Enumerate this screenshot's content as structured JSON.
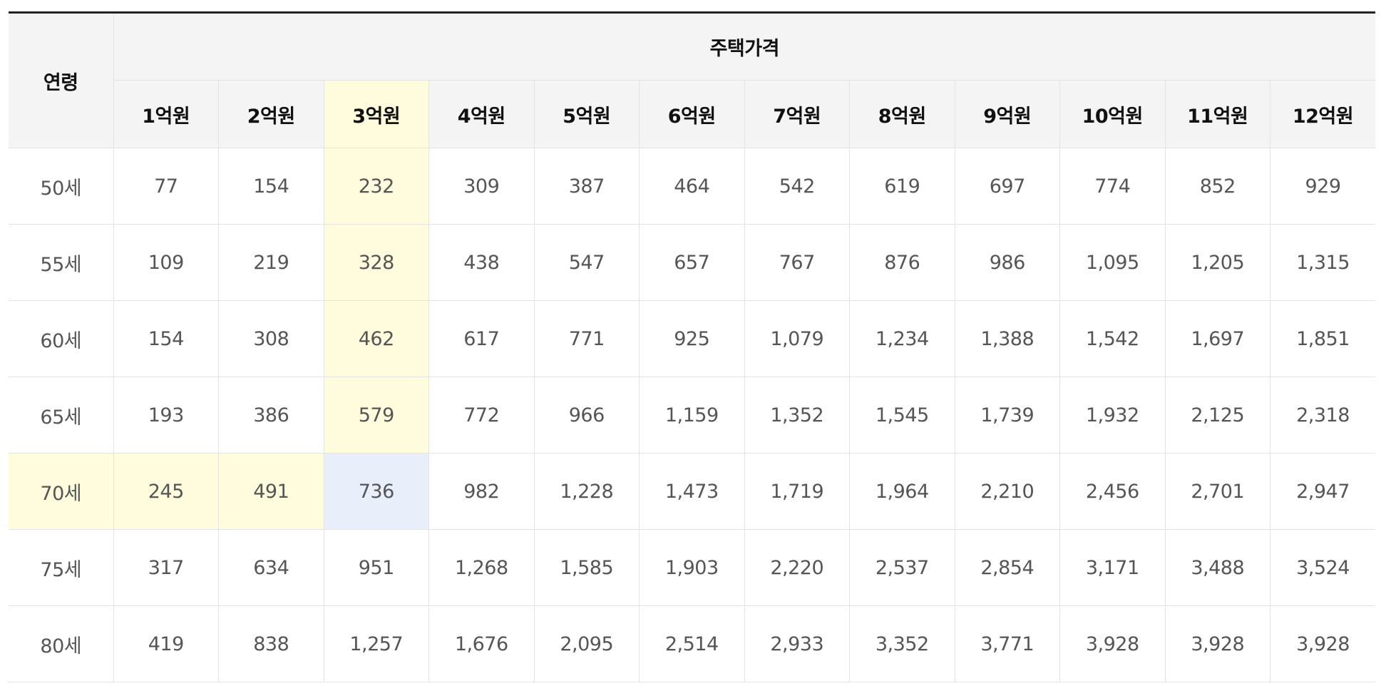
{
  "table": {
    "age_header": "연령",
    "price_group_header": "주택가격",
    "price_columns": [
      "1억원",
      "2억원",
      "3억원",
      "4억원",
      "5억원",
      "6억원",
      "7억원",
      "8억원",
      "9억원",
      "10억원",
      "11억원",
      "12억원"
    ],
    "rows": [
      {
        "age": "50세",
        "values": [
          "77",
          "154",
          "232",
          "309",
          "387",
          "464",
          "542",
          "619",
          "697",
          "774",
          "852",
          "929"
        ]
      },
      {
        "age": "55세",
        "values": [
          "109",
          "219",
          "328",
          "438",
          "547",
          "657",
          "767",
          "876",
          "986",
          "1,095",
          "1,205",
          "1,315"
        ]
      },
      {
        "age": "60세",
        "values": [
          "154",
          "308",
          "462",
          "617",
          "771",
          "925",
          "1,079",
          "1,234",
          "1,388",
          "1,542",
          "1,697",
          "1,851"
        ]
      },
      {
        "age": "65세",
        "values": [
          "193",
          "386",
          "579",
          "772",
          "966",
          "1,159",
          "1,352",
          "1,545",
          "1,739",
          "1,932",
          "2,125",
          "2,318"
        ]
      },
      {
        "age": "70세",
        "values": [
          "245",
          "491",
          "736",
          "982",
          "1,228",
          "1,473",
          "1,719",
          "1,964",
          "2,210",
          "2,456",
          "2,701",
          "2,947"
        ]
      },
      {
        "age": "75세",
        "values": [
          "317",
          "634",
          "951",
          "1,268",
          "1,585",
          "1,903",
          "2,220",
          "2,537",
          "2,854",
          "3,171",
          "3,488",
          "3,524"
        ]
      },
      {
        "age": "80세",
        "values": [
          "419",
          "838",
          "1,257",
          "1,676",
          "2,095",
          "2,514",
          "2,933",
          "3,352",
          "3,771",
          "3,928",
          "3,928",
          "3,928"
        ]
      }
    ]
  },
  "highlight": {
    "column_color": "#fffbdd",
    "row_color": "#fffbdd",
    "intersection_color": "#e8effb"
  }
}
